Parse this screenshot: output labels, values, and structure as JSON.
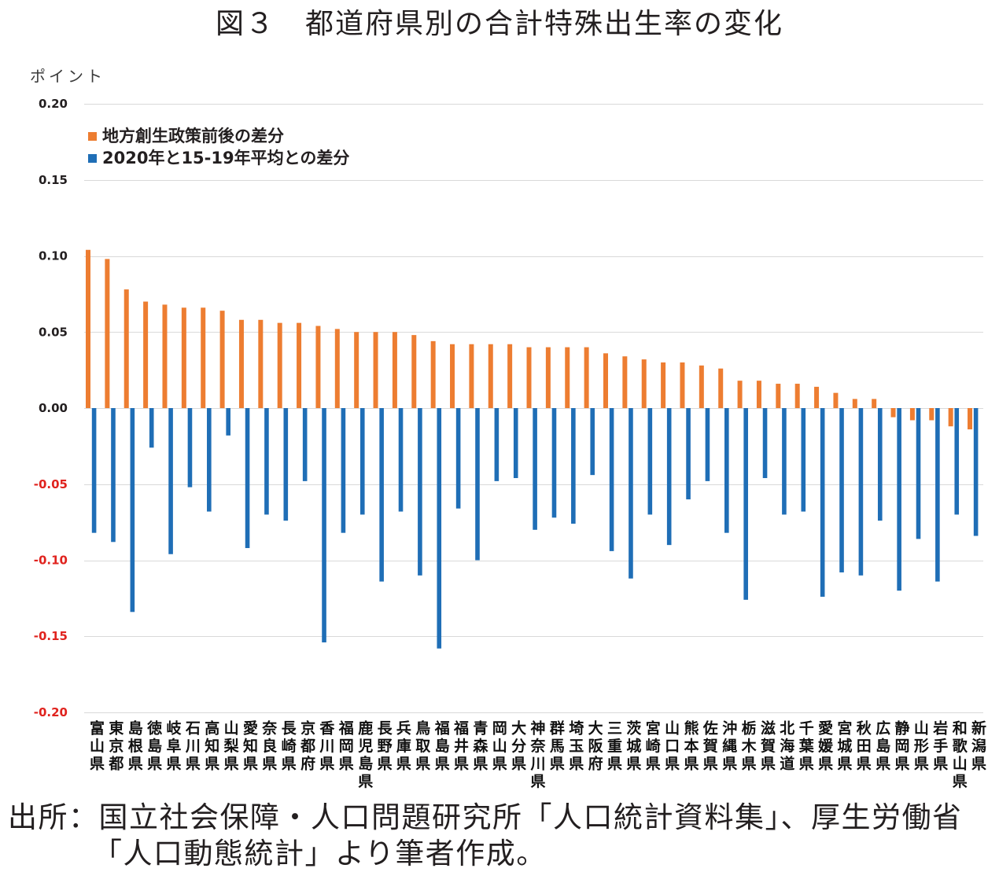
{
  "title": "図３　都道府県別の合計特殊出生率の変化",
  "chart_data": {
    "type": "bar",
    "ylabel": "ポイント",
    "ylim": [
      -0.2,
      0.2
    ],
    "yticks": [
      "0.20",
      "0.15",
      "0.10",
      "0.05",
      "0.00",
      "-0.05",
      "-0.10",
      "-0.15",
      "-0.20"
    ],
    "tick_colors": {
      "positive": "#231f20",
      "negative": "#e0231e"
    },
    "grid": true,
    "legend_position": "top-left",
    "categories": [
      "富山県",
      "東京都",
      "島根県",
      "徳島県",
      "岐阜県",
      "石川県",
      "高知県",
      "山梨県",
      "愛知県",
      "奈良県",
      "長崎県",
      "京都府",
      "香川県",
      "福岡県",
      "鹿児島県",
      "長野県",
      "兵庫県",
      "鳥取県",
      "福島県",
      "福井県",
      "青森県",
      "岡山県",
      "大分県",
      "神奈川県",
      "群馬県",
      "埼玉県",
      "大阪府",
      "三重県",
      "茨城県",
      "宮崎県",
      "山口県",
      "熊本県",
      "佐賀県",
      "沖縄県",
      "栃木県",
      "滋賀県",
      "北海道",
      "千葉県",
      "愛媛県",
      "宮城県",
      "秋田県",
      "広島県",
      "静岡県",
      "山形県",
      "岩手県",
      "和歌山県",
      "新潟県"
    ],
    "series": [
      {
        "name": "地方創生政策前後の差分",
        "color": "#ed7d31",
        "values": [
          0.104,
          0.098,
          0.078,
          0.07,
          0.068,
          0.066,
          0.066,
          0.064,
          0.058,
          0.058,
          0.056,
          0.056,
          0.054,
          0.052,
          0.05,
          0.05,
          0.05,
          0.048,
          0.044,
          0.042,
          0.042,
          0.042,
          0.042,
          0.04,
          0.04,
          0.04,
          0.04,
          0.036,
          0.034,
          0.032,
          0.03,
          0.03,
          0.028,
          0.026,
          0.018,
          0.018,
          0.016,
          0.016,
          0.014,
          0.01,
          0.006,
          0.006,
          -0.006,
          -0.008,
          -0.008,
          -0.012,
          -0.014
        ]
      },
      {
        "name": "2020年と15-19年平均との差分",
        "color": "#1f6eb6",
        "values": [
          -0.082,
          -0.088,
          -0.134,
          -0.026,
          -0.096,
          -0.052,
          -0.068,
          -0.018,
          -0.092,
          -0.07,
          -0.074,
          -0.048,
          -0.154,
          -0.082,
          -0.07,
          -0.114,
          -0.068,
          -0.11,
          -0.158,
          -0.066,
          -0.1,
          -0.048,
          -0.046,
          -0.08,
          -0.072,
          -0.076,
          -0.044,
          -0.094,
          -0.112,
          -0.07,
          -0.09,
          -0.06,
          -0.048,
          -0.082,
          -0.126,
          -0.046,
          -0.07,
          -0.068,
          -0.124,
          -0.108,
          -0.11,
          -0.074,
          -0.12,
          -0.086,
          -0.114,
          -0.07,
          -0.084
        ]
      }
    ]
  },
  "source": {
    "line1": "出所：国立社会保障・人口問題研究所「人口統計資料集」、厚生労働省",
    "line2": "「人口動態統計」より筆者作成。"
  }
}
